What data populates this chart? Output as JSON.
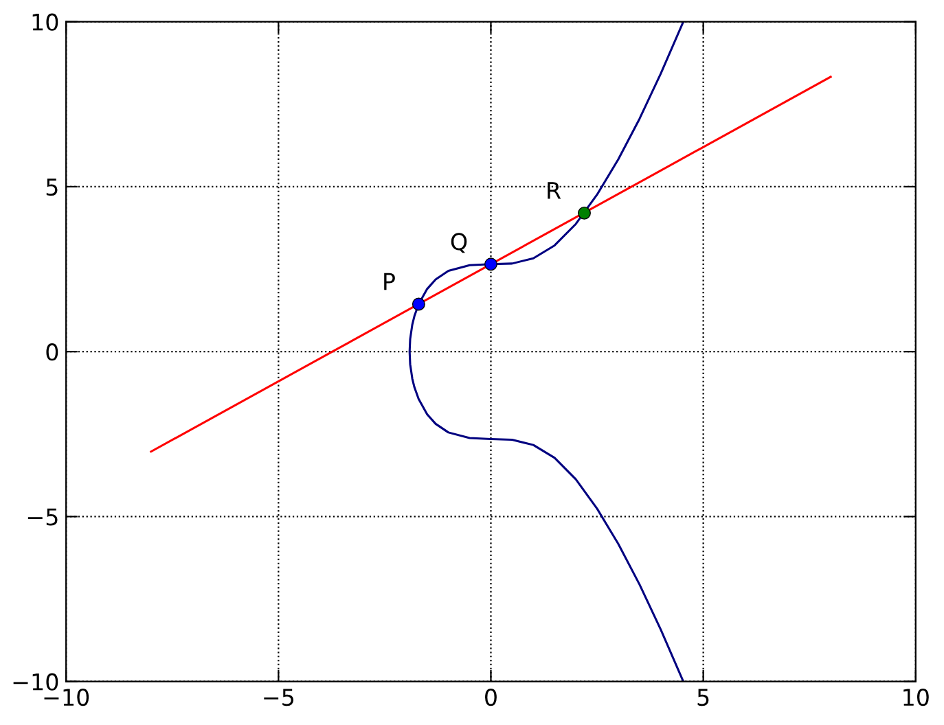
{
  "chart_data": {
    "type": "line",
    "xlim": [
      -10,
      10
    ],
    "ylim": [
      -10,
      10
    ],
    "xticks": [
      -10,
      -5,
      0,
      5,
      10
    ],
    "yticks": [
      -10,
      -5,
      0,
      5,
      10
    ],
    "grid": true,
    "legend": false,
    "series": [
      {
        "color": "#000080",
        "marker": "none",
        "x": [
          4.53,
          4.0,
          3.5,
          3.0,
          2.5,
          2.0,
          1.5,
          1.0,
          0.5,
          0,
          -0.5,
          -1.0,
          -1.3,
          -1.5,
          -1.7,
          -1.8,
          -1.85,
          -1.9,
          -1.913,
          -1.9,
          -1.85,
          -1.8,
          -1.7,
          -1.5,
          -1.3,
          -1.0,
          -0.5,
          0,
          0.5,
          1.0,
          1.5,
          2.0,
          2.5,
          3.0,
          3.5,
          4.0,
          4.53
        ],
        "values": [
          10.0,
          8.43,
          7.06,
          5.83,
          4.76,
          3.87,
          3.22,
          2.83,
          2.67,
          2.65,
          2.62,
          2.45,
          2.19,
          1.9,
          1.44,
          1.08,
          0.82,
          0.38,
          0,
          -0.38,
          -0.82,
          -1.08,
          -1.44,
          -1.9,
          -2.19,
          -2.45,
          -2.62,
          -2.65,
          -2.67,
          -2.83,
          -3.22,
          -3.87,
          -4.76,
          -5.83,
          -7.06,
          -8.43,
          -10.0
        ]
      },
      {
        "color": "#ff0000",
        "marker": "none",
        "x": [
          -8,
          8
        ],
        "values": [
          -3.03,
          8.33
        ]
      },
      {
        "type": "scatter",
        "color": "#0000ff",
        "marker": "circle",
        "x": [
          -1.7,
          0
        ],
        "values": [
          1.44,
          2.65
        ]
      },
      {
        "type": "scatter",
        "color": "#008000",
        "marker": "circle",
        "x": [
          2.2
        ],
        "values": [
          4.2
        ]
      }
    ],
    "annotations": [
      {
        "text": "P",
        "x": -1.7,
        "y": 1.44
      },
      {
        "text": "Q",
        "x": 0,
        "y": 2.65
      },
      {
        "text": "R",
        "x": 2.2,
        "y": 4.2
      }
    ]
  }
}
